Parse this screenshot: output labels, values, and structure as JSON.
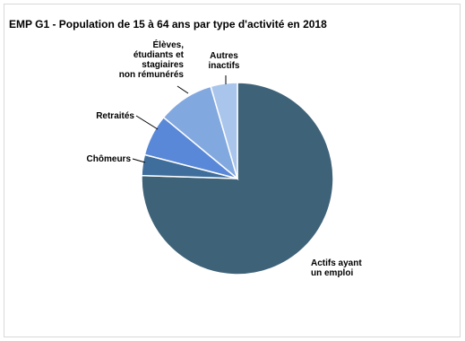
{
  "chart_data": {
    "type": "pie",
    "title": "EMP G1 - Population de 15 à 64 ans par type d'activité en 2018",
    "slices": [
      {
        "label": "Actifs ayant un emploi",
        "lines": [
          "Actifs ayant",
          "un emploi"
        ],
        "value": 75.5,
        "color": "#3e6278"
      },
      {
        "label": "Chômeurs",
        "lines": [
          "Chômeurs"
        ],
        "value": 3.5,
        "color": "#3f6e9c"
      },
      {
        "label": "Retraités",
        "lines": [
          "Retraités"
        ],
        "value": 7.0,
        "color": "#5a88d8"
      },
      {
        "label": "Élèves, étudiants et stagiaires non rémunérés",
        "lines": [
          "Élèves,",
          "étudiants et",
          "stagiaires",
          "non rémunérés"
        ],
        "value": 9.5,
        "color": "#82a8e0"
      },
      {
        "label": "Autres inactifs",
        "lines": [
          "Autres",
          "inactifs"
        ],
        "value": 4.5,
        "color": "#a9c5ec"
      }
    ]
  }
}
